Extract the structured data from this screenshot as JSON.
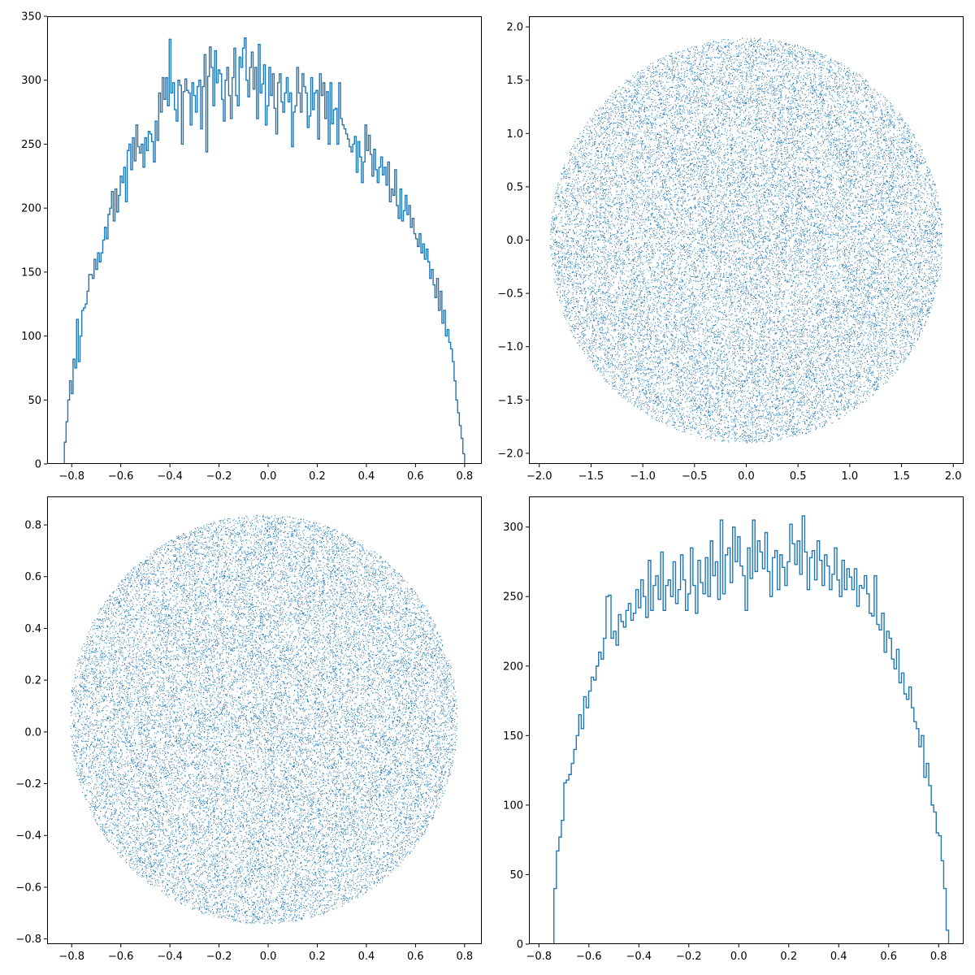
{
  "chart_data": [
    {
      "type": "histogram",
      "panel": "top-left",
      "xlim": [
        -0.9,
        0.87
      ],
      "ylim": [
        0,
        350
      ],
      "xticks": [
        -0.8,
        -0.6,
        -0.4,
        -0.2,
        0.0,
        0.2,
        0.4,
        0.6,
        0.8
      ],
      "yticks": [
        0,
        50,
        100,
        150,
        200,
        250,
        300,
        350
      ],
      "xtick_labels": [
        "−0.8",
        "−0.6",
        "−0.4",
        "−0.2",
        "0.0",
        "0.2",
        "0.4",
        "0.6",
        "0.8"
      ],
      "ytick_labels": [
        "0",
        "50",
        "100",
        "150",
        "200",
        "250",
        "300",
        "350"
      ],
      "histtype": "step",
      "bin_range": [
        -0.83,
        0.8
      ],
      "color": "#1f77b4",
      "counts": [
        17,
        33,
        50,
        65,
        55,
        82,
        75,
        113,
        80,
        100,
        120,
        122,
        125,
        135,
        148,
        148,
        145,
        160,
        152,
        165,
        158,
        165,
        175,
        185,
        176,
        195,
        200,
        213,
        190,
        215,
        197,
        210,
        225,
        220,
        232,
        205,
        245,
        250,
        230,
        255,
        237,
        265,
        248,
        243,
        250,
        232,
        255,
        245,
        260,
        258,
        252,
        236,
        268,
        253,
        290,
        275,
        302,
        285,
        302,
        280,
        332,
        290,
        298,
        277,
        268,
        300,
        296,
        250,
        291,
        301,
        292,
        290,
        265,
        298,
        288,
        275,
        295,
        300,
        262,
        295,
        320,
        244,
        303,
        326,
        310,
        280,
        323,
        298,
        308,
        305,
        285,
        268,
        300,
        310,
        288,
        270,
        302,
        325,
        288,
        280,
        318,
        310,
        325,
        333,
        300,
        287,
        310,
        322,
        293,
        310,
        270,
        328,
        290,
        297,
        312,
        265,
        280,
        310,
        288,
        305,
        278,
        258,
        298,
        305,
        283,
        275,
        290,
        302,
        283,
        290,
        248,
        275,
        280,
        310,
        290,
        275,
        305,
        295,
        290,
        263,
        272,
        302,
        277,
        290,
        292,
        254,
        305,
        288,
        298,
        270,
        291,
        250,
        298,
        266,
        277,
        278,
        250,
        298,
        270,
        265,
        262,
        258,
        254,
        248,
        244,
        250,
        256,
        228,
        252,
        240,
        220,
        236,
        265,
        245,
        257,
        242,
        225,
        246,
        230,
        220,
        232,
        240,
        226,
        232,
        218,
        236,
        205,
        215,
        210,
        230,
        202,
        192,
        215,
        190,
        198,
        210,
        195,
        202,
        185,
        192,
        180,
        176,
        170,
        180,
        165,
        172,
        160,
        168,
        158,
        145,
        152,
        140,
        130,
        145,
        120,
        135,
        110,
        120,
        100,
        105,
        95,
        90,
        80,
        65,
        50,
        40,
        30,
        20,
        8
      ]
    },
    {
      "type": "scatter",
      "panel": "top-right",
      "xlim": [
        -2.1,
        2.1
      ],
      "ylim": [
        -2.1,
        2.1
      ],
      "xticks": [
        -2.0,
        -1.5,
        -1.0,
        -0.5,
        0.0,
        0.5,
        1.0,
        1.5,
        2.0
      ],
      "yticks": [
        -2.0,
        -1.5,
        -1.0,
        -0.5,
        0.0,
        0.5,
        1.0,
        1.5,
        2.0
      ],
      "xtick_labels": [
        "−2.0",
        "−1.5",
        "−1.0",
        "−0.5",
        "0.0",
        "0.5",
        "1.0",
        "1.5",
        "2.0"
      ],
      "ytick_labels": [
        "−2.0",
        "−1.5",
        "−1.0",
        "−0.5",
        "0.0",
        "0.5",
        "1.0",
        "1.5",
        "2.0"
      ],
      "shape": "disc",
      "center": [
        0.0,
        0.0
      ],
      "radius": 1.9,
      "point_count": 50000,
      "color": "#1f77b4"
    },
    {
      "type": "scatter",
      "panel": "bottom-left",
      "xlim": [
        -0.9,
        0.87
      ],
      "ylim": [
        -0.82,
        0.91
      ],
      "xticks": [
        -0.8,
        -0.6,
        -0.4,
        -0.2,
        0.0,
        0.2,
        0.4,
        0.6,
        0.8
      ],
      "yticks": [
        -0.8,
        -0.6,
        -0.4,
        -0.2,
        0.0,
        0.2,
        0.4,
        0.6,
        0.8
      ],
      "xtick_labels": [
        "−0.8",
        "−0.6",
        "−0.4",
        "−0.2",
        "0.0",
        "0.2",
        "0.4",
        "0.6",
        "0.8"
      ],
      "ytick_labels": [
        "−0.8",
        "−0.6",
        "−0.4",
        "−0.2",
        "0.0",
        "0.2",
        "0.4",
        "0.6",
        "0.8"
      ],
      "shape": "disc",
      "center": [
        -0.02,
        0.05
      ],
      "radius": 0.79,
      "point_count": 50000,
      "color": "#1f77b4"
    },
    {
      "type": "histogram",
      "panel": "bottom-right",
      "xlim": [
        -0.84,
        0.9
      ],
      "ylim": [
        0,
        322
      ],
      "xticks": [
        -0.8,
        -0.6,
        -0.4,
        -0.2,
        0.0,
        0.2,
        0.4,
        0.6,
        0.8
      ],
      "yticks": [
        0,
        50,
        100,
        150,
        200,
        250,
        300
      ],
      "xtick_labels": [
        "−0.8",
        "−0.6",
        "−0.4",
        "−0.2",
        "0.0",
        "0.2",
        "0.4",
        "0.6",
        "0.8"
      ],
      "ytick_labels": [
        "0",
        "50",
        "100",
        "150",
        "200",
        "250",
        "300"
      ],
      "histtype": "step",
      "bin_range": [
        -0.74,
        0.84
      ],
      "color": "#1f77b4",
      "counts": [
        40,
        67,
        77,
        89,
        116,
        118,
        122,
        130,
        140,
        150,
        165,
        155,
        178,
        170,
        182,
        192,
        190,
        200,
        210,
        205,
        220,
        250,
        251,
        220,
        225,
        215,
        237,
        232,
        228,
        240,
        245,
        233,
        238,
        255,
        242,
        262,
        250,
        235,
        276,
        240,
        258,
        265,
        248,
        282,
        240,
        258,
        262,
        250,
        275,
        245,
        255,
        280,
        262,
        240,
        252,
        285,
        258,
        238,
        276,
        260,
        252,
        278,
        250,
        290,
        265,
        275,
        248,
        305,
        252,
        280,
        285,
        260,
        300,
        275,
        293,
        272,
        265,
        240,
        285,
        263,
        305,
        268,
        290,
        282,
        270,
        296,
        268,
        250,
        278,
        283,
        255,
        280,
        271,
        258,
        275,
        302,
        288,
        273,
        290,
        266,
        308,
        282,
        255,
        278,
        283,
        262,
        290,
        276,
        258,
        280,
        272,
        255,
        266,
        285,
        262,
        250,
        276,
        255,
        270,
        264,
        255,
        270,
        243,
        258,
        256,
        265,
        252,
        238,
        236,
        265,
        230,
        226,
        238,
        210,
        225,
        220,
        205,
        198,
        212,
        188,
        195,
        180,
        176,
        185,
        170,
        160,
        155,
        142,
        150,
        120,
        130,
        114,
        100,
        95,
        80,
        78,
        60,
        40,
        10
      ]
    }
  ]
}
